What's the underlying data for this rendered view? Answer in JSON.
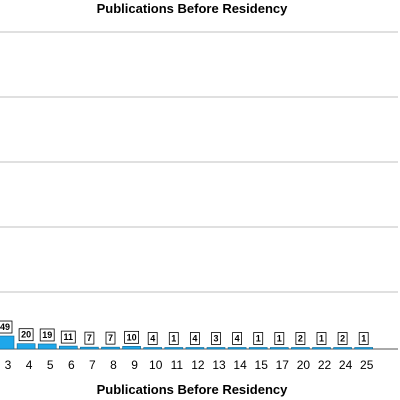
{
  "chart_data": {
    "type": "bar",
    "title": "Publications Before Residency",
    "xlabel": "Publications Before Residency",
    "ylabel": "",
    "categories": [
      "3",
      "4",
      "5",
      "6",
      "7",
      "8",
      "9",
      "10",
      "11",
      "12",
      "13",
      "14",
      "15",
      "17",
      "20",
      "22",
      "24",
      "25"
    ],
    "values": [
      49,
      20,
      19,
      11,
      7,
      7,
      10,
      4,
      1,
      4,
      3,
      4,
      1,
      1,
      2,
      1,
      2,
      1
    ],
    "data_labels": [
      "49",
      "20",
      "19",
      "11",
      "7",
      "7",
      "10",
      "4",
      "1",
      "4",
      "3",
      "4",
      "1",
      "1",
      "2",
      "1",
      "2",
      "1"
    ],
    "grid": true,
    "bar_color": "#1ea7ea",
    "bar_edge_color": "#0b5f8a",
    "gridline_color": "#c0c0c0"
  }
}
